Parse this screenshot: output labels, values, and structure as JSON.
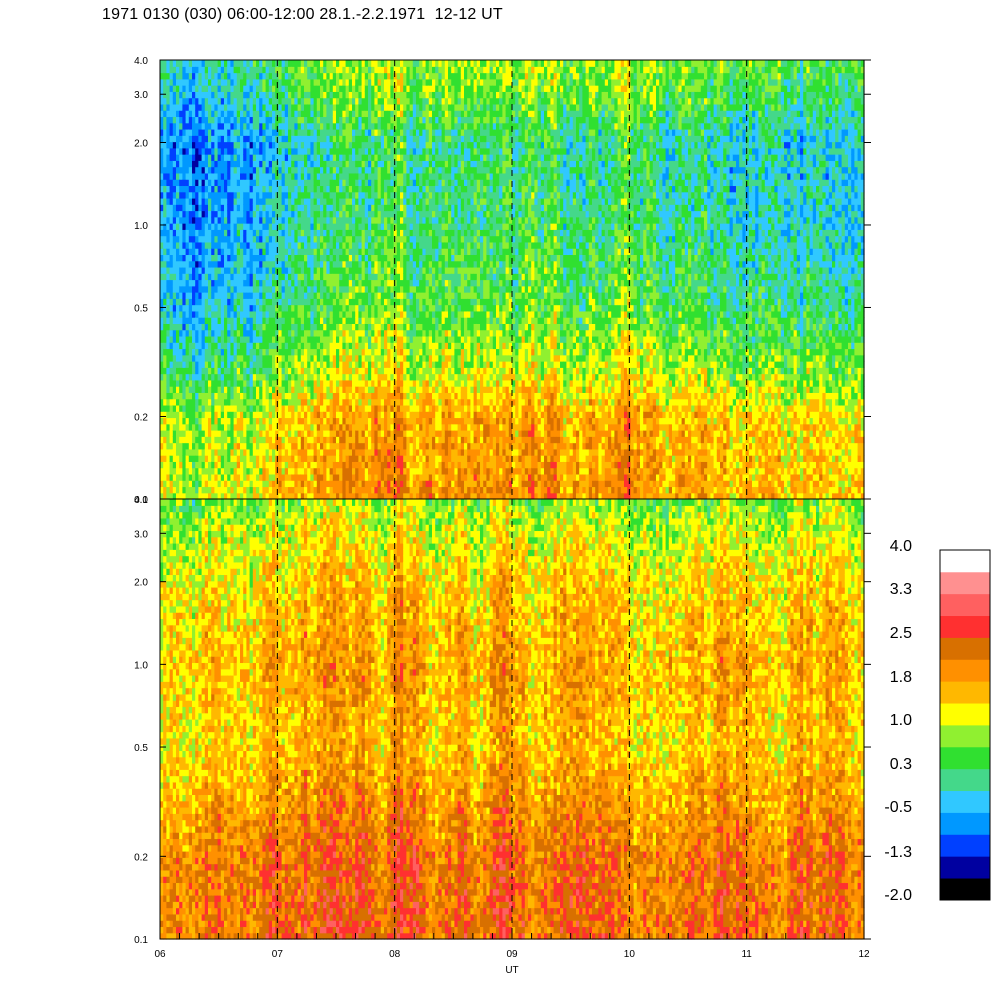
{
  "title": "1971 0130 (030) 06:00-12:00 28.1.-2.2.1971  12-12 UT",
  "chart_data": {
    "type": "heatmap",
    "panels": [
      {
        "y_ticks": [
          0.1,
          0.2,
          0.5,
          1.0,
          2.0,
          3.0,
          4.0
        ],
        "y_tick_labels": [
          "0.1",
          "0.2",
          "0.5",
          "1.0",
          "2.0",
          "3.0",
          "4.0"
        ],
        "ylim": [
          0.1,
          4.0
        ],
        "yscale": "log",
        "profile_freq": [
          0.1,
          0.2,
          0.3,
          0.5,
          1.0,
          2.0,
          3.0,
          4.0
        ],
        "profile_level": [
          1.5,
          1.3,
          0.6,
          0.1,
          -0.2,
          -0.3,
          0.2,
          0.4
        ],
        "time_profile_ut": [
          6.0,
          6.5,
          7.0,
          7.5,
          8.0,
          8.5,
          9.0,
          9.5,
          10.0,
          10.5,
          11.0,
          11.5,
          12.0
        ],
        "time_profile_level": [
          -0.4,
          -0.4,
          -0.2,
          0.3,
          0.6,
          0.5,
          0.4,
          0.4,
          0.4,
          0.3,
          -0.1,
          0.0,
          0.3
        ]
      },
      {
        "y_ticks": [
          0.1,
          0.2,
          0.5,
          1.0,
          2.0,
          3.0,
          4.0
        ],
        "y_tick_labels": [
          "0.1",
          "0.2",
          "0.5",
          "1.0",
          "2.0",
          "3.0",
          "4.0"
        ],
        "ylim": [
          0.1,
          4.0
        ],
        "yscale": "log",
        "profile_freq": [
          0.1,
          0.2,
          0.3,
          0.5,
          1.0,
          2.0,
          3.0,
          4.0
        ],
        "profile_level": [
          2.2,
          2.1,
          1.8,
          1.4,
          1.6,
          1.3,
          1.0,
          0.6
        ],
        "time_profile_ut": [
          6.0,
          6.5,
          7.0,
          7.5,
          8.0,
          8.5,
          9.0,
          9.5,
          10.0,
          10.5,
          11.0,
          11.5,
          12.0
        ],
        "time_profile_level": [
          -0.2,
          -0.1,
          0.1,
          0.3,
          0.2,
          0.1,
          0.3,
          0.2,
          0.2,
          0.1,
          0.0,
          0.0,
          0.0
        ]
      }
    ],
    "x_ticks": [
      6,
      7,
      8,
      9,
      10,
      11,
      12
    ],
    "x_tick_labels": [
      "06",
      "07",
      "08",
      "09",
      "10",
      "11",
      "12"
    ],
    "xlim": [
      6,
      12
    ],
    "xlabel": "UT",
    "dashed_lines_ut": [
      7,
      8,
      9,
      10,
      11
    ],
    "colorbar": {
      "range": [
        -2.0,
        4.0
      ],
      "labels": [
        "4.0",
        "3.3",
        "2.5",
        "1.8",
        "1.0",
        "0.3",
        "-0.5",
        "-1.3",
        "-2.0"
      ],
      "colors": [
        "#000000",
        "#0000a0",
        "#0040ff",
        "#0098ff",
        "#30c8ff",
        "#44d88a",
        "#30e030",
        "#90f030",
        "#ffff00",
        "#ffb800",
        "#ff9000",
        "#d87000",
        "#ff3030",
        "#ff6060",
        "#ff9090",
        "#ffffff"
      ]
    }
  }
}
